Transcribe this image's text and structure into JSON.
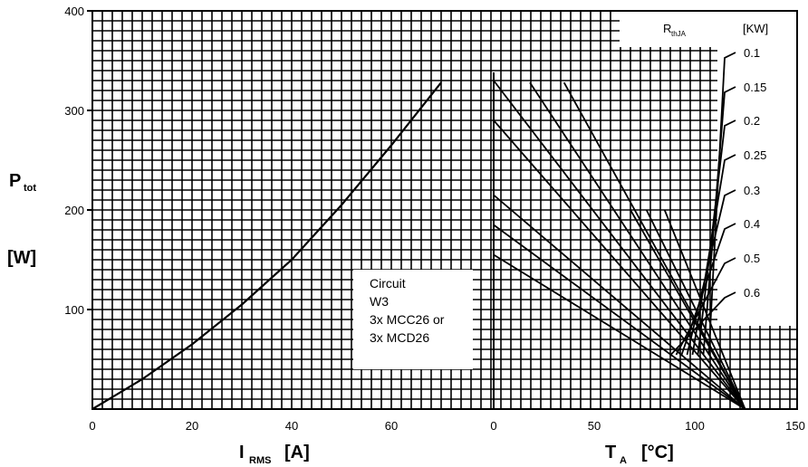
{
  "chart_data": [
    {
      "type": "line",
      "name": "power-vs-current",
      "y_axis": {
        "label": "P",
        "label_sub": "tot",
        "unit": "[W]",
        "ticks": [
          100,
          200,
          300,
          400
        ],
        "range": [
          0,
          400
        ]
      },
      "x_axis": {
        "label": "I",
        "label_sub": "RMS",
        "unit": "[A]",
        "ticks": [
          0,
          20,
          40,
          60
        ],
        "range": [
          0,
          80
        ]
      },
      "grid": true,
      "series": [
        {
          "x": [
            0,
            10,
            20,
            30,
            40,
            50,
            60,
            70
          ],
          "y": [
            0,
            30,
            65,
            105,
            150,
            205,
            265,
            328
          ]
        }
      ],
      "annotation": [
        "Circuit",
        "W3",
        "3x MCC26 or",
        "3x MCD26"
      ]
    },
    {
      "type": "line",
      "name": "power-vs-ambient",
      "x_axis": {
        "label": "T",
        "label_sub": "A",
        "unit": "[°C]",
        "ticks": [
          0,
          50,
          100,
          150
        ],
        "range": [
          0,
          150
        ]
      },
      "grid": true,
      "legend": {
        "title": "R",
        "title_sub": "thJA",
        "unit": "[KW]",
        "placement": "top-right"
      },
      "convergence_point": {
        "x": 125,
        "y": 0
      },
      "series": [
        {
          "name": "0.1",
          "x": [
            68,
            125
          ],
          "y": [
            200,
            0
          ]
        },
        {
          "name": "0.15",
          "x": [
            76,
            125
          ],
          "y": [
            200,
            0
          ]
        },
        {
          "name": "0.2",
          "x": [
            85,
            125
          ],
          "y": [
            200,
            0
          ]
        },
        {
          "name": "0.25",
          "x": [
            0,
            125
          ],
          "y": [
            330,
            0
          ]
        },
        {
          "name": "0.3",
          "x": [
            0,
            125
          ],
          "y": [
            290,
            0
          ]
        },
        {
          "name": "0.4",
          "x": [
            0,
            125
          ],
          "y": [
            215,
            0
          ]
        },
        {
          "name": "0.5",
          "x": [
            0,
            125
          ],
          "y": [
            185,
            0
          ]
        },
        {
          "name": "0.6",
          "x": [
            0,
            125
          ],
          "y": [
            155,
            0
          ]
        },
        {
          "name": "",
          "x": [
            18,
            125
          ],
          "y": [
            328,
            0
          ]
        },
        {
          "name": "",
          "x": [
            35,
            125
          ],
          "y": [
            328,
            0
          ]
        }
      ]
    }
  ]
}
